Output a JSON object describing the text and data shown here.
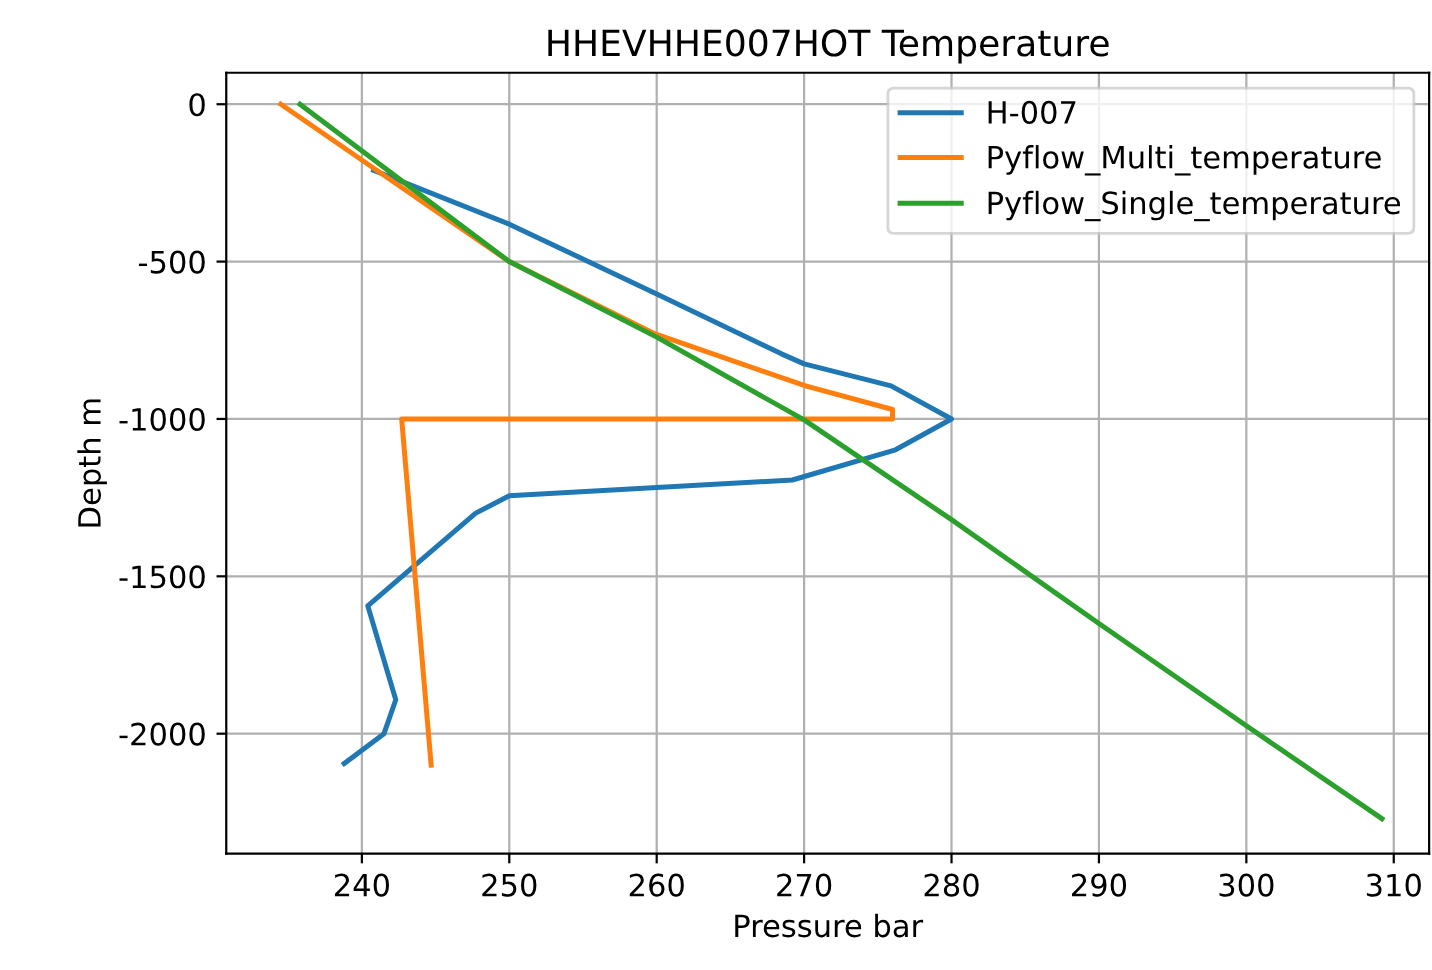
{
  "chart_data": {
    "type": "line",
    "title": "HHEVHHE007HOT Temperature",
    "xlabel": "Pressure bar",
    "ylabel": "Depth m",
    "series": [
      {
        "name": "H-007",
        "color": "#1f77b4",
        "x": [
          240.8,
          250,
          260,
          268.5,
          270,
          275.9,
          280,
          276.2,
          269.2,
          250,
          247.7,
          240.4,
          242.3,
          241.5,
          238.8
        ],
        "values": [
          -210,
          -381,
          -603,
          -794,
          -825,
          -895,
          -1000,
          -1098,
          -1194,
          -1244,
          -1300,
          -1594,
          -1892,
          -2000,
          -2095
        ]
      },
      {
        "name": "Pyflow_Multi_temperature",
        "color": "#ff7f0e",
        "x": [
          234.5,
          250,
          259.9,
          270.1,
          276,
          276,
          242.7,
          244.7
        ],
        "values": [
          0,
          -500,
          -730,
          -895,
          -970,
          -1000,
          -1000,
          -2100
        ]
      },
      {
        "name": "Pyflow_Single_temperature",
        "color": "#2ca02c",
        "x": [
          235.8,
          250,
          260,
          270,
          280,
          290,
          300,
          309.2
        ],
        "values": [
          0,
          -500,
          -740,
          -1003,
          -1320,
          -1650,
          -1975,
          -2270
        ]
      }
    ],
    "xlim": [
      230.8,
      312.4
    ],
    "ylim": [
      -2381,
      100
    ],
    "xticks": [
      240,
      250,
      260,
      270,
      280,
      290,
      300,
      310
    ],
    "yticks": [
      -2000,
      -1500,
      -1000,
      -500,
      0
    ],
    "grid": true,
    "legend": "top right",
    "line_style": "solid",
    "marker": "none"
  }
}
